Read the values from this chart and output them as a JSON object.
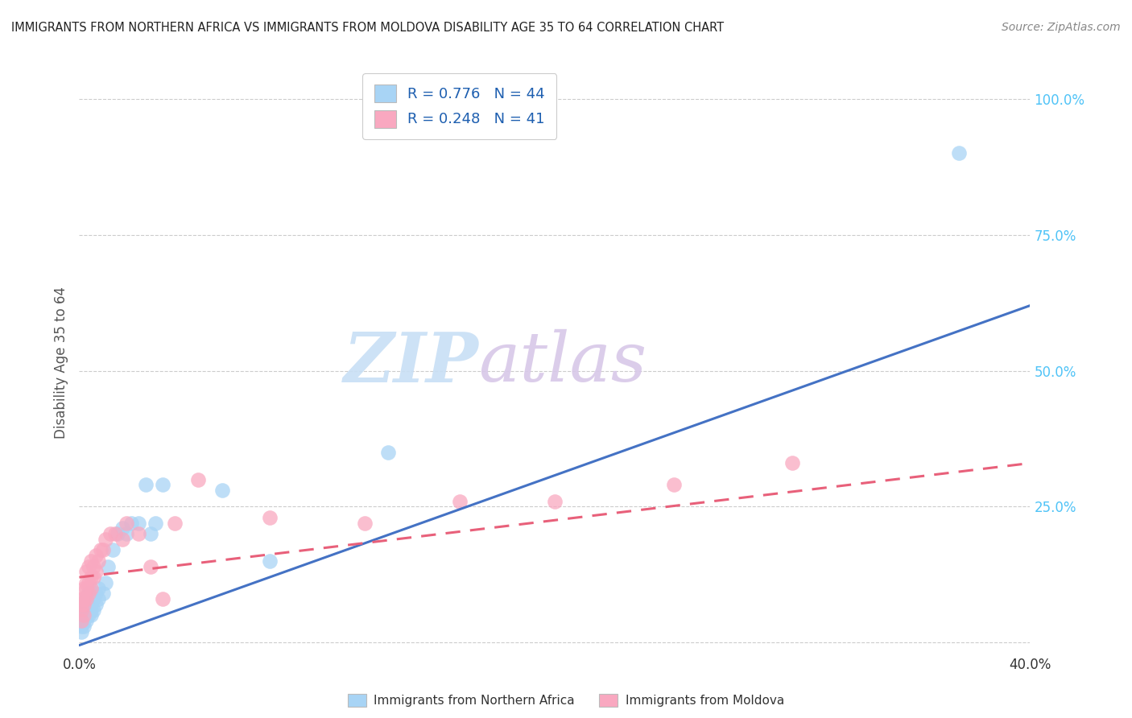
{
  "title": "IMMIGRANTS FROM NORTHERN AFRICA VS IMMIGRANTS FROM MOLDOVA DISABILITY AGE 35 TO 64 CORRELATION CHART",
  "source": "Source: ZipAtlas.com",
  "ylabel": "Disability Age 35 to 64",
  "xlim": [
    0.0,
    0.4
  ],
  "ylim": [
    -0.02,
    1.05
  ],
  "ytick_vals": [
    0.0,
    0.25,
    0.5,
    0.75,
    1.0
  ],
  "ytick_labels": [
    "",
    "25.0%",
    "50.0%",
    "75.0%",
    "100.0%"
  ],
  "xtick_vals": [
    0.0,
    0.1,
    0.2,
    0.3,
    0.4
  ],
  "xtick_labels": [
    "0.0%",
    "",
    "",
    "",
    "40.0%"
  ],
  "R_blue": 0.776,
  "N_blue": 44,
  "R_pink": 0.248,
  "N_pink": 41,
  "blue_color": "#A8D4F5",
  "pink_color": "#F9A8C0",
  "blue_line_color": "#4472C4",
  "pink_line_color": "#E8607A",
  "watermark_zip": "ZIP",
  "watermark_atlas": "atlas",
  "legend_label_blue": "Immigrants from Northern Africa",
  "legend_label_pink": "Immigrants from Moldova",
  "blue_scatter_x": [
    0.001,
    0.001,
    0.001,
    0.001,
    0.002,
    0.002,
    0.002,
    0.002,
    0.002,
    0.003,
    0.003,
    0.003,
    0.003,
    0.003,
    0.004,
    0.004,
    0.004,
    0.004,
    0.005,
    0.005,
    0.005,
    0.006,
    0.006,
    0.007,
    0.007,
    0.008,
    0.008,
    0.01,
    0.011,
    0.012,
    0.014,
    0.016,
    0.018,
    0.02,
    0.022,
    0.025,
    0.028,
    0.03,
    0.032,
    0.035,
    0.06,
    0.08,
    0.13,
    0.37
  ],
  "blue_scatter_y": [
    0.02,
    0.03,
    0.04,
    0.05,
    0.03,
    0.04,
    0.05,
    0.06,
    0.07,
    0.04,
    0.05,
    0.06,
    0.07,
    0.08,
    0.05,
    0.07,
    0.08,
    0.09,
    0.05,
    0.06,
    0.07,
    0.06,
    0.08,
    0.07,
    0.09,
    0.08,
    0.1,
    0.09,
    0.11,
    0.14,
    0.17,
    0.2,
    0.21,
    0.2,
    0.22,
    0.22,
    0.29,
    0.2,
    0.22,
    0.29,
    0.28,
    0.15,
    0.35,
    0.9
  ],
  "pink_scatter_x": [
    0.001,
    0.001,
    0.001,
    0.001,
    0.002,
    0.002,
    0.002,
    0.002,
    0.003,
    0.003,
    0.003,
    0.003,
    0.004,
    0.004,
    0.004,
    0.005,
    0.005,
    0.005,
    0.006,
    0.006,
    0.007,
    0.007,
    0.008,
    0.009,
    0.01,
    0.011,
    0.013,
    0.015,
    0.018,
    0.02,
    0.025,
    0.03,
    0.035,
    0.04,
    0.05,
    0.08,
    0.12,
    0.16,
    0.2,
    0.25,
    0.3
  ],
  "pink_scatter_y": [
    0.04,
    0.06,
    0.07,
    0.08,
    0.05,
    0.07,
    0.08,
    0.1,
    0.08,
    0.1,
    0.11,
    0.13,
    0.09,
    0.11,
    0.14,
    0.1,
    0.12,
    0.15,
    0.12,
    0.14,
    0.13,
    0.16,
    0.15,
    0.17,
    0.17,
    0.19,
    0.2,
    0.2,
    0.19,
    0.22,
    0.2,
    0.14,
    0.08,
    0.22,
    0.3,
    0.23,
    0.22,
    0.26,
    0.26,
    0.29,
    0.33
  ],
  "blue_line_x0": 0.0,
  "blue_line_y0": -0.005,
  "blue_line_x1": 0.4,
  "blue_line_y1": 0.62,
  "pink_line_x0": 0.0,
  "pink_line_y0": 0.12,
  "pink_line_x1": 0.4,
  "pink_line_y1": 0.33
}
